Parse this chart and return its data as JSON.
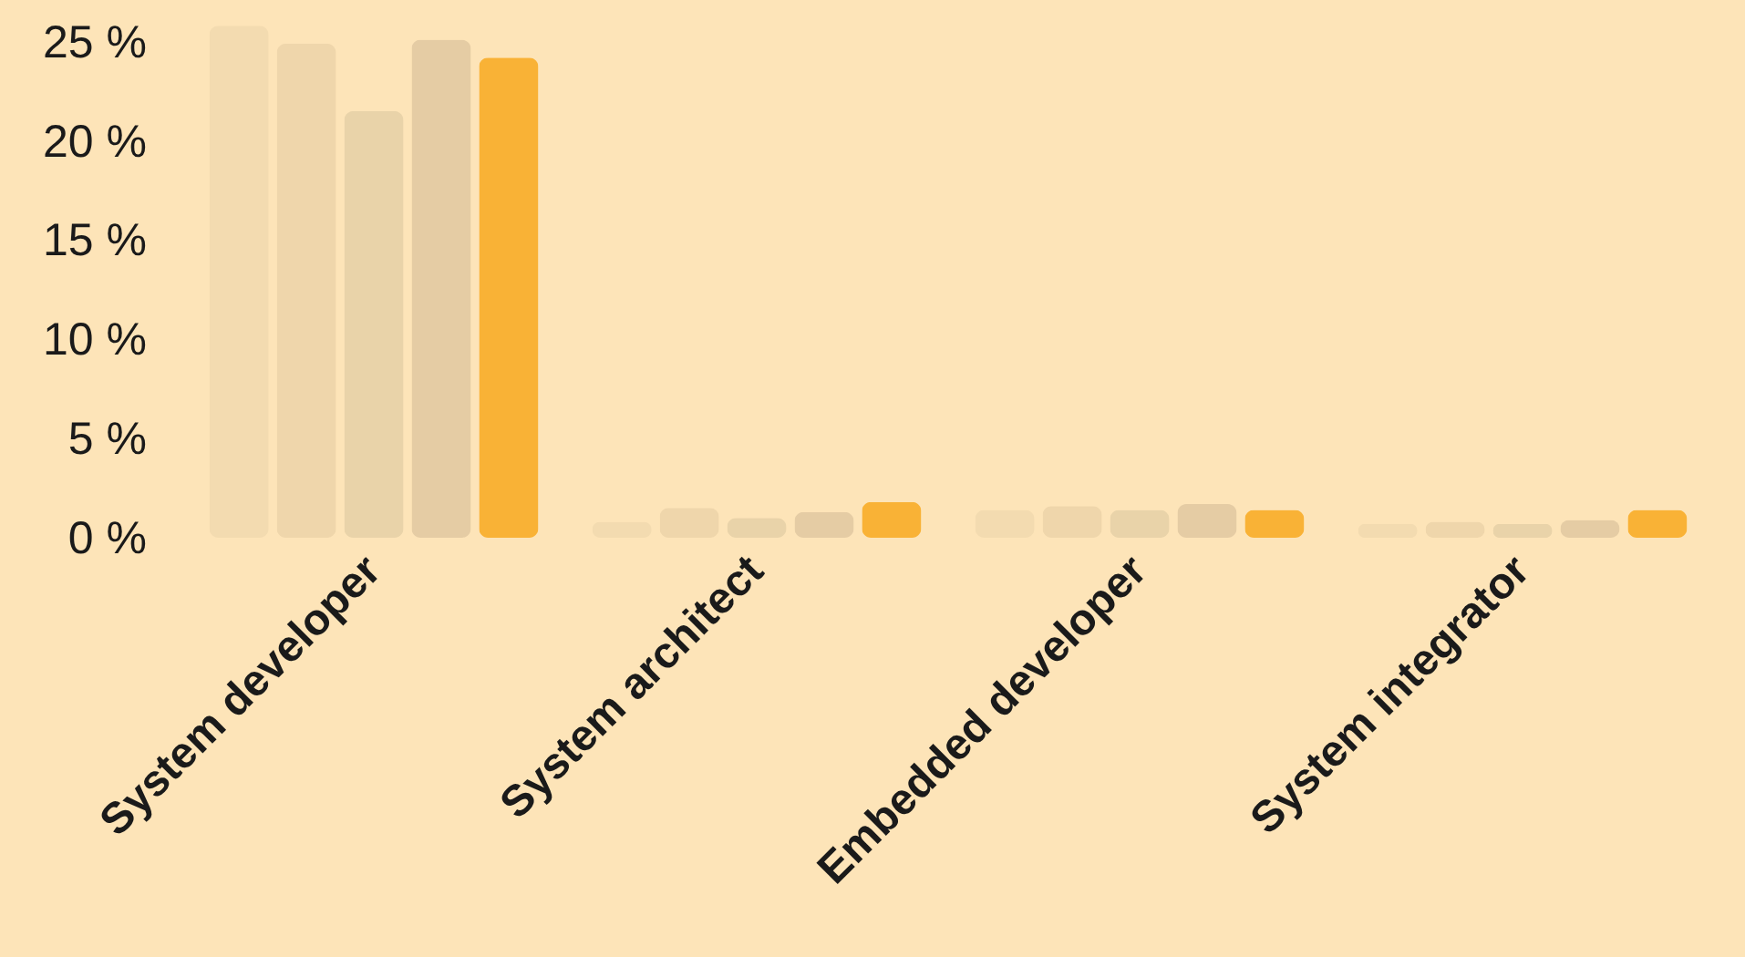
{
  "chart_data": {
    "type": "bar",
    "categories": [
      "System developer",
      "System architect",
      "Embedded developer",
      "System integrator"
    ],
    "series": [
      {
        "color": "#f3dbb0",
        "values": [
          25.8,
          0.8,
          1.4,
          0.7
        ]
      },
      {
        "color": "#efd6ab",
        "values": [
          24.9,
          1.5,
          1.6,
          0.8
        ]
      },
      {
        "color": "#e9d3a9",
        "values": [
          21.5,
          1.0,
          1.4,
          0.7
        ]
      },
      {
        "color": "#e5cca4",
        "values": [
          25.1,
          1.3,
          1.7,
          0.9
        ]
      },
      {
        "color": "#f9b236",
        "values": [
          24.2,
          1.8,
          1.4,
          1.4
        ]
      }
    ],
    "ylim": [
      0,
      26
    ],
    "yticks": [
      {
        "value": 0,
        "label": "0 %"
      },
      {
        "value": 5,
        "label": "5 %"
      },
      {
        "value": 10,
        "label": "10 %"
      },
      {
        "value": 15,
        "label": "15 %"
      },
      {
        "value": 20,
        "label": "20 %"
      },
      {
        "value": 25,
        "label": "25 %"
      }
    ],
    "grid": false
  }
}
